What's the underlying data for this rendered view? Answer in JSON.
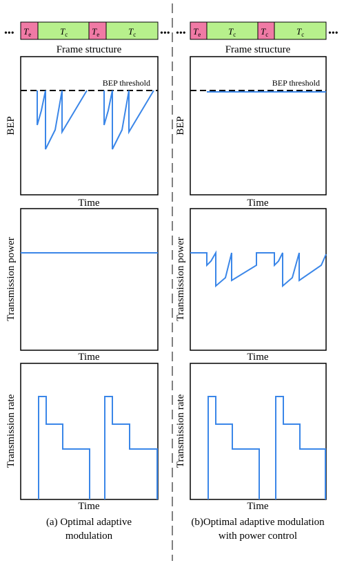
{
  "colors": {
    "te_fill": "#f07aa5",
    "tc_fill": "#b7f08c",
    "curve": "#3a86e8",
    "frame": "#000000",
    "threshold": "#000000"
  },
  "frame_structure": {
    "caption": "Frame structure",
    "ellipsis": "•••",
    "te_label": "T",
    "te_sub": "e",
    "tc_label": "T",
    "tc_sub": "c"
  },
  "panels": {
    "bep_threshold_label": "BEP threshold",
    "bep_ylabel": "BEP",
    "power_ylabel": "Transmission power",
    "rate_ylabel": "Transmission  rate",
    "xlabel": "Time"
  },
  "captions": {
    "left_line1": "(a) Optimal adaptive",
    "left_line2": "modulation",
    "right_line1": "(b)Optimal adaptive modulation",
    "right_line2": "with power control"
  },
  "icons": {
    "ellipsis": "ellipsis-icon"
  }
}
